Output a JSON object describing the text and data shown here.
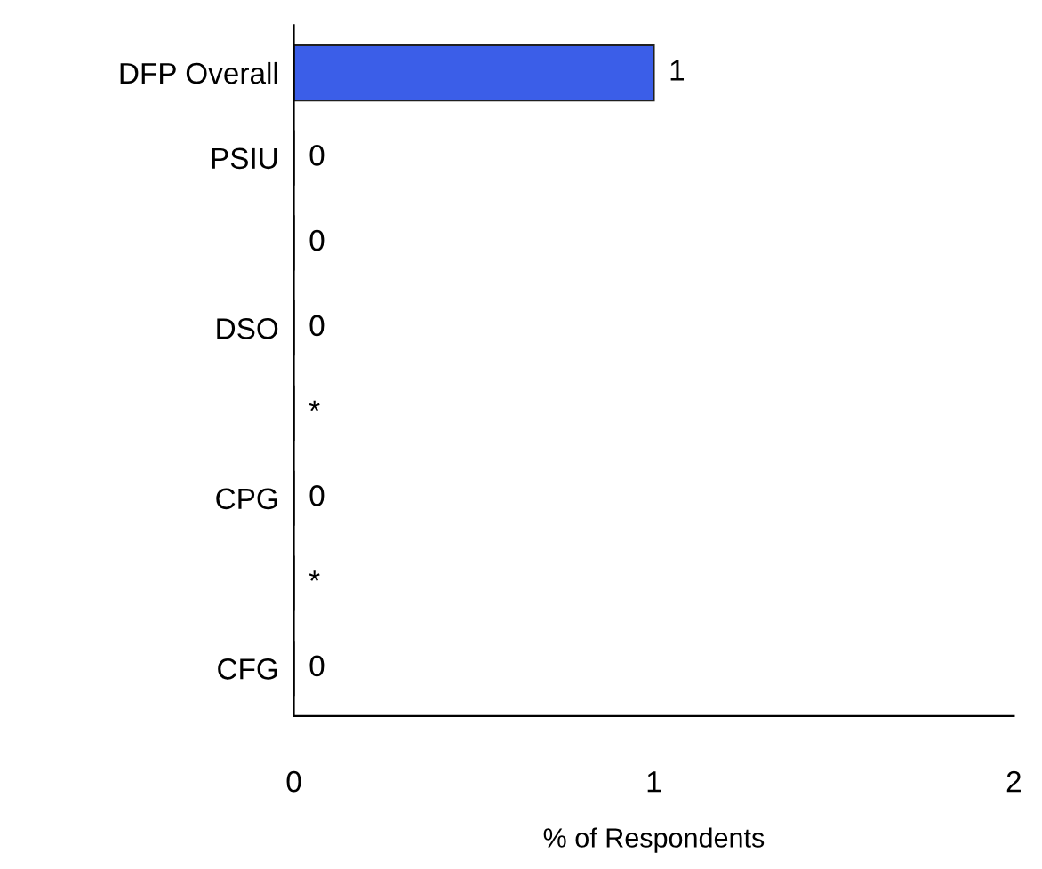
{
  "chart_data": {
    "type": "bar",
    "orientation": "horizontal",
    "categories": [
      "DFP Overall",
      "PSIU",
      null,
      "DSO",
      null,
      "CPG",
      null,
      "CFG"
    ],
    "values": [
      1,
      0,
      0,
      0,
      0,
      0,
      0,
      0
    ],
    "value_labels": [
      "1",
      "0",
      "0",
      "0",
      "*",
      "0",
      "*",
      "0"
    ],
    "color": "#3b5ee8",
    "xlim": [
      0,
      2
    ],
    "xticks": [
      0,
      1,
      2
    ],
    "xlabel": "% of Respondents",
    "grid": false,
    "legend": false
  }
}
